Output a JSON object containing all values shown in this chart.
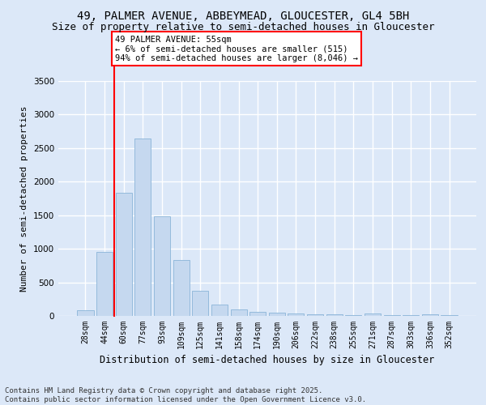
{
  "title_line1": "49, PALMER AVENUE, ABBEYMEAD, GLOUCESTER, GL4 5BH",
  "title_line2": "Size of property relative to semi-detached houses in Gloucester",
  "xlabel": "Distribution of semi-detached houses by size in Gloucester",
  "ylabel": "Number of semi-detached properties",
  "categories": [
    "28sqm",
    "44sqm",
    "60sqm",
    "77sqm",
    "93sqm",
    "109sqm",
    "125sqm",
    "141sqm",
    "158sqm",
    "174sqm",
    "190sqm",
    "206sqm",
    "222sqm",
    "238sqm",
    "255sqm",
    "271sqm",
    "287sqm",
    "303sqm",
    "336sqm",
    "352sqm"
  ],
  "values": [
    80,
    950,
    1830,
    2640,
    1480,
    830,
    375,
    165,
    100,
    60,
    45,
    35,
    25,
    20,
    15,
    40,
    15,
    10,
    30,
    10
  ],
  "bar_color": "#c5d8ef",
  "bar_edge_color": "#8ab4d8",
  "bg_color": "#dce8f8",
  "grid_color": "#ffffff",
  "red_line_x": 1.5,
  "annotation_text": "49 PALMER AVENUE: 55sqm\n← 6% of semi-detached houses are smaller (515)\n94% of semi-detached houses are larger (8,046) →",
  "ylim_max": 3500,
  "yticks": [
    0,
    500,
    1000,
    1500,
    2000,
    2500,
    3000,
    3500
  ],
  "footer_line1": "Contains HM Land Registry data © Crown copyright and database right 2025.",
  "footer_line2": "Contains public sector information licensed under the Open Government Licence v3.0.",
  "title_fontsize": 10,
  "subtitle_fontsize": 9,
  "annotation_fontsize": 7.5,
  "footer_fontsize": 6.5,
  "ylabel_fontsize": 8,
  "xlabel_fontsize": 8.5,
  "tick_fontsize": 7
}
